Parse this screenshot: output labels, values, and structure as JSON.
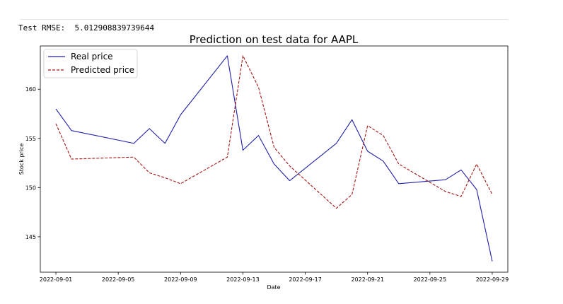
{
  "output": {
    "rmse_label": "Test RMSE:",
    "rmse_value": "5.012908839739644"
  },
  "chart_data": {
    "type": "line",
    "title": "Prediction on test data for AAPL",
    "xlabel": "Date",
    "ylabel": "Stock price",
    "x": [
      "2022-09-01",
      "2022-09-02",
      "2022-09-06",
      "2022-09-07",
      "2022-09-08",
      "2022-09-09",
      "2022-09-12",
      "2022-09-13",
      "2022-09-14",
      "2022-09-15",
      "2022-09-16",
      "2022-09-19",
      "2022-09-20",
      "2022-09-21",
      "2022-09-22",
      "2022-09-23",
      "2022-09-26",
      "2022-09-27",
      "2022-09-28",
      "2022-09-29"
    ],
    "x_ticks": [
      "2022-09-01",
      "2022-09-05",
      "2022-09-09",
      "2022-09-13",
      "2022-09-17",
      "2022-09-21",
      "2022-09-25",
      "2022-09-29"
    ],
    "xlim": [
      "2022-08-31",
      "2022-09-30"
    ],
    "y_ticks": [
      145,
      150,
      155,
      160
    ],
    "ylim": [
      141.4,
      164.4
    ],
    "grid": false,
    "legend_position": "top-left",
    "series": [
      {
        "name": "Real price",
        "color": "#1f1fa8",
        "style": "solid",
        "values": [
          158.0,
          155.8,
          154.5,
          156.0,
          154.5,
          157.4,
          163.4,
          153.8,
          155.3,
          152.4,
          150.7,
          154.5,
          156.9,
          153.7,
          152.7,
          150.4,
          150.8,
          151.8,
          149.8,
          142.5
        ]
      },
      {
        "name": "Predicted price",
        "color": "#a31515",
        "style": "dashed",
        "values": [
          156.5,
          152.9,
          153.1,
          151.5,
          151.0,
          150.4,
          153.1,
          163.4,
          160.2,
          154.1,
          152.2,
          147.9,
          149.3,
          156.3,
          155.3,
          152.4,
          149.6,
          149.1,
          152.4,
          149.3
        ]
      }
    ]
  }
}
